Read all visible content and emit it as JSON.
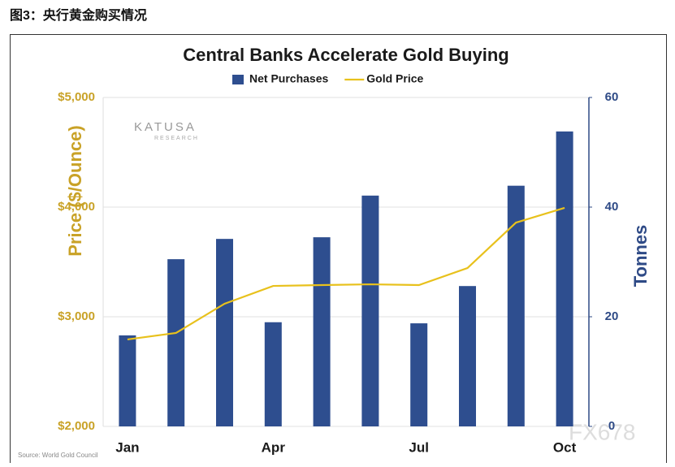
{
  "caption": "图3：央行黄金购买情况",
  "source": "Source: World Gold Council",
  "watermarks": [
    "KATUSA",
    "RESEARCH",
    "FX678"
  ],
  "chart_data": {
    "type": "combo",
    "title": "Central Banks Accelerate Gold Buying",
    "categories": [
      "Jan",
      null,
      null,
      "Apr",
      null,
      null,
      "Jul",
      null,
      null,
      "Oct"
    ],
    "series": [
      {
        "name": "Net Purchases",
        "type": "bar",
        "axis": "y2",
        "color": "#2e4e8f",
        "values": [
          16.6,
          30.5,
          34.2,
          19.0,
          34.5,
          42.1,
          18.8,
          25.6,
          43.9,
          53.8
        ]
      },
      {
        "name": "Gold Price",
        "type": "line",
        "color": "#e8c11c",
        "values": [
          2793,
          2852,
          3119,
          3281,
          3289,
          3296,
          3289,
          3444,
          3859,
          3993
        ]
      }
    ],
    "ylabel": "Price ($/Ounce)",
    "y2label": "Tonnes",
    "ylim": [
      2000,
      5000
    ],
    "yticks": [
      {
        "value": 2000,
        "label": "$2,000"
      },
      {
        "value": 3000,
        "label": "$3,000"
      },
      {
        "value": 4000,
        "label": "$4,000"
      },
      {
        "value": 5000,
        "label": "$5,000"
      }
    ],
    "y2lim": [
      0,
      60
    ],
    "y2ticks": [
      0,
      20,
      40,
      60
    ],
    "grid": true,
    "legend": "top"
  }
}
